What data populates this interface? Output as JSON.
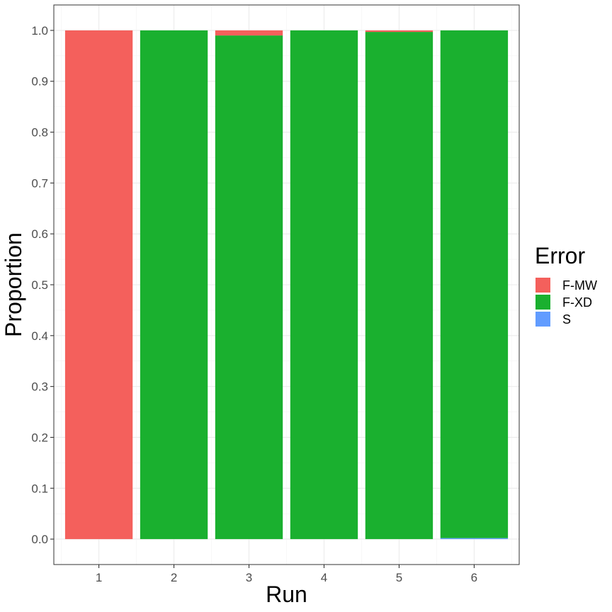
{
  "chart_data": {
    "type": "bar",
    "stacked": true,
    "categories": [
      "1",
      "2",
      "3",
      "4",
      "5",
      "6"
    ],
    "series": [
      {
        "name": "S",
        "color": "#619CFF",
        "values": [
          0,
          0,
          0,
          0,
          0,
          0.002
        ]
      },
      {
        "name": "F-XD",
        "color": "#1AB02F",
        "values": [
          0,
          1.0,
          0.99,
          1.0,
          0.997,
          0.998
        ]
      },
      {
        "name": "F-MW",
        "color": "#F4605C",
        "values": [
          1.0,
          0,
          0.01,
          0,
          0.003,
          0
        ]
      }
    ],
    "xlabel": "Run",
    "ylabel": "Proportion",
    "ylim": [
      -0.05,
      1.05
    ],
    "yticks": [
      "0.0",
      "0.1",
      "0.2",
      "0.3",
      "0.4",
      "0.5",
      "0.6",
      "0.7",
      "0.8",
      "0.9",
      "1.0"
    ],
    "grid": true,
    "legend": {
      "title": "Error",
      "position": "right",
      "entries": [
        {
          "label": "F-MW",
          "color": "#F4605C"
        },
        {
          "label": "F-XD",
          "color": "#1AB02F"
        },
        {
          "label": "S",
          "color": "#619CFF"
        }
      ]
    }
  }
}
